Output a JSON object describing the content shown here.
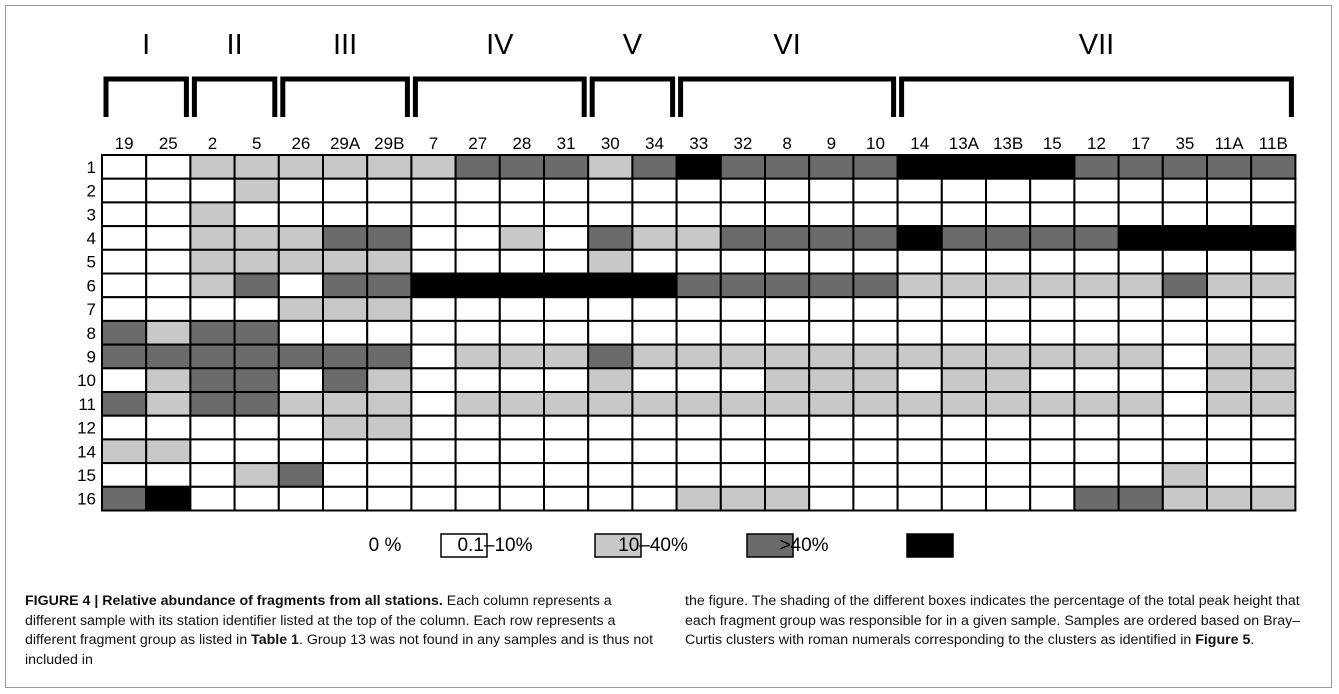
{
  "chart_data": {
    "type": "heatmap",
    "clusters": [
      {
        "label": "I",
        "start": 0,
        "end": 1
      },
      {
        "label": "II",
        "start": 2,
        "end": 3
      },
      {
        "label": "III",
        "start": 4,
        "end": 6
      },
      {
        "label": "IV",
        "start": 7,
        "end": 10
      },
      {
        "label": "V",
        "start": 11,
        "end": 12
      },
      {
        "label": "VI",
        "start": 13,
        "end": 17
      },
      {
        "label": "VII",
        "start": 18,
        "end": 26
      }
    ],
    "columns": [
      "19",
      "25",
      "2",
      "5",
      "26",
      "29A",
      "29B",
      "7",
      "27",
      "28",
      "31",
      "30",
      "34",
      "33",
      "32",
      "8",
      "9",
      "10",
      "14",
      "13A",
      "13B",
      "15",
      "12",
      "17",
      "35",
      "11A",
      "11B"
    ],
    "rows": [
      "1",
      "2",
      "3",
      "4",
      "5",
      "6",
      "7",
      "8",
      "9",
      "10",
      "11",
      "12",
      "14",
      "15",
      "16"
    ],
    "levels": [
      "0 %",
      "0.1–10%",
      "10–40%",
      ">40%"
    ],
    "level_colors": [
      "#ffffff",
      "#c8c8c8",
      "#6b6b6b",
      "#000000"
    ],
    "values": [
      [
        0,
        0,
        1,
        1,
        1,
        1,
        1,
        1,
        2,
        2,
        2,
        1,
        2,
        3,
        2,
        2,
        2,
        2,
        3,
        3,
        3,
        3,
        2,
        2,
        2,
        2,
        2
      ],
      [
        0,
        0,
        0,
        1,
        0,
        0,
        0,
        0,
        0,
        0,
        0,
        0,
        0,
        0,
        0,
        0,
        0,
        0,
        0,
        0,
        0,
        0,
        0,
        0,
        0,
        0,
        0
      ],
      [
        0,
        0,
        1,
        0,
        0,
        0,
        0,
        0,
        0,
        0,
        0,
        0,
        0,
        0,
        0,
        0,
        0,
        0,
        0,
        0,
        0,
        0,
        0,
        0,
        0,
        0,
        0
      ],
      [
        0,
        0,
        1,
        1,
        1,
        2,
        2,
        0,
        0,
        1,
        0,
        2,
        1,
        1,
        2,
        2,
        2,
        2,
        3,
        2,
        2,
        2,
        2,
        3,
        3,
        3,
        3
      ],
      [
        0,
        0,
        1,
        1,
        1,
        1,
        1,
        0,
        0,
        0,
        0,
        1,
        0,
        0,
        0,
        0,
        0,
        0,
        0,
        0,
        0,
        0,
        0,
        0,
        0,
        0,
        0
      ],
      [
        0,
        0,
        1,
        2,
        0,
        2,
        2,
        3,
        3,
        3,
        3,
        3,
        3,
        2,
        2,
        2,
        2,
        2,
        1,
        1,
        1,
        1,
        1,
        1,
        2,
        1,
        1
      ],
      [
        0,
        0,
        0,
        0,
        1,
        1,
        1,
        0,
        0,
        0,
        0,
        0,
        0,
        0,
        0,
        0,
        0,
        0,
        0,
        0,
        0,
        0,
        0,
        0,
        0,
        0,
        0
      ],
      [
        2,
        1,
        2,
        2,
        0,
        0,
        0,
        0,
        0,
        0,
        0,
        0,
        0,
        0,
        0,
        0,
        0,
        0,
        0,
        0,
        0,
        0,
        0,
        0,
        0,
        0,
        0
      ],
      [
        2,
        2,
        2,
        2,
        2,
        2,
        2,
        0,
        1,
        1,
        1,
        2,
        1,
        1,
        1,
        1,
        1,
        1,
        1,
        1,
        1,
        1,
        1,
        1,
        0,
        1,
        1
      ],
      [
        0,
        1,
        2,
        2,
        0,
        2,
        1,
        0,
        0,
        0,
        0,
        1,
        0,
        0,
        0,
        1,
        1,
        1,
        0,
        1,
        1,
        0,
        0,
        0,
        0,
        1,
        1
      ],
      [
        2,
        1,
        2,
        2,
        1,
        1,
        1,
        0,
        1,
        1,
        1,
        1,
        1,
        1,
        1,
        1,
        1,
        1,
        1,
        1,
        1,
        1,
        1,
        1,
        0,
        1,
        1
      ],
      [
        0,
        0,
        0,
        0,
        0,
        1,
        1,
        0,
        0,
        0,
        0,
        0,
        0,
        0,
        0,
        0,
        0,
        0,
        0,
        0,
        0,
        0,
        0,
        0,
        0,
        0,
        0
      ],
      [
        1,
        1,
        0,
        0,
        0,
        0,
        0,
        0,
        0,
        0,
        0,
        0,
        0,
        0,
        0,
        0,
        0,
        0,
        0,
        0,
        0,
        0,
        0,
        0,
        0,
        0,
        0
      ],
      [
        0,
        0,
        0,
        1,
        2,
        0,
        0,
        0,
        0,
        0,
        0,
        0,
        0,
        0,
        0,
        0,
        0,
        0,
        0,
        0,
        0,
        0,
        0,
        0,
        1,
        0,
        0
      ],
      [
        2,
        3,
        0,
        0,
        0,
        0,
        0,
        0,
        0,
        0,
        0,
        0,
        0,
        1,
        1,
        1,
        0,
        0,
        0,
        0,
        0,
        0,
        2,
        2,
        1,
        1,
        1
      ]
    ]
  },
  "caption": {
    "figure_label": "FIGURE 4 | Relative abundance of fragments from all stations.",
    "col1_text": " Each column represents a different sample with its station identifier listed at the top of the column. Each row represents a different fragment group as listed in ",
    "table_ref": "Table 1",
    "col1_tail": ". Group 13 was not found in any samples and is thus not included in",
    "col2_text": "the figure. The shading of the different boxes indicates the percentage of the total peak height that each fragment group was responsible for in a given sample. Samples are ordered based on Bray–Curtis clusters with roman numerals corresponding to the clusters as identified in ",
    "figure_ref": "Figure 5",
    "col2_tail": "."
  }
}
